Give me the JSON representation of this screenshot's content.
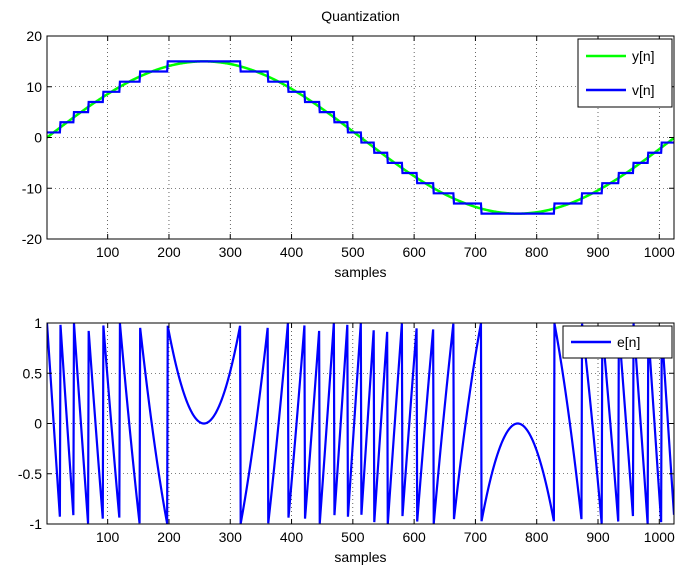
{
  "chart_data": [
    {
      "type": "line",
      "title": "Quantization",
      "xlabel": "samples",
      "ylabel": "",
      "xlim": [
        1,
        1024
      ],
      "ylim": [
        -20,
        20
      ],
      "xticks": [
        100,
        200,
        300,
        400,
        500,
        600,
        700,
        800,
        900,
        1000
      ],
      "yticks": [
        -20,
        -10,
        0,
        10,
        20
      ],
      "grid": true,
      "legend_position": "top-right",
      "series": [
        {
          "name": "y[n]",
          "color": "#00ff00",
          "description": "sine wave: y[n] = 15*sin(2*pi*(n-1)/1024), n = 1..1024",
          "amplitude": 15,
          "period_samples": 1024
        },
        {
          "name": "v[n]",
          "color": "#0000ff",
          "description": "y[n] quantized to nearest step of 2 (odd levels -15..15)",
          "quantizer_step": 2,
          "levels": [
            -15,
            -13,
            -11,
            -9,
            -7,
            -5,
            -3,
            -1,
            1,
            3,
            5,
            7,
            9,
            11,
            13,
            15
          ]
        }
      ]
    },
    {
      "type": "line",
      "title": "",
      "xlabel": "samples",
      "ylabel": "",
      "xlim": [
        1,
        1024
      ],
      "ylim": [
        -1,
        1
      ],
      "xticks": [
        100,
        200,
        300,
        400,
        500,
        600,
        700,
        800,
        900,
        1000
      ],
      "yticks": [
        -1,
        -0.5,
        0,
        0.5,
        1
      ],
      "grid": true,
      "legend_position": "top-right",
      "series": [
        {
          "name": "e[n]",
          "color": "#0000ff",
          "description": "quantization error e[n] = v[n] - y[n], bounded in [-1, 1]"
        }
      ]
    }
  ]
}
